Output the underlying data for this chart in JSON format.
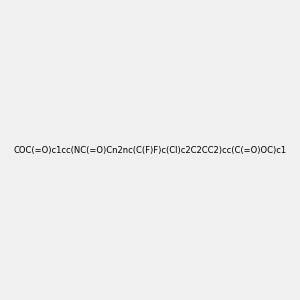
{
  "smiles": "COC(=O)c1cc(NC(=O)Cn2nc(C(F)F)c(Cl)c2C2CC2)cc(C(=O)OC)c1",
  "image_size": 300,
  "background_color": "#f0f0f0"
}
